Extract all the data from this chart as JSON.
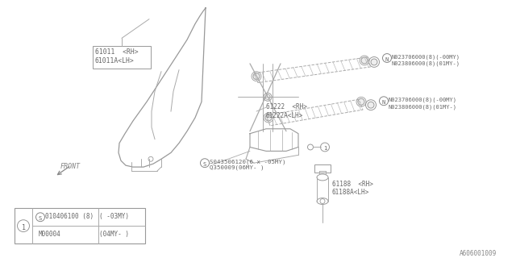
{
  "bg_color": "#ffffff",
  "line_color": "#aaaaaa",
  "text_color": "#666666",
  "diagram_id": "A606001009",
  "glass_label": "61011  <RH>\n61011A<LH>",
  "regulator_label": "61222  <RH>\n61222A<LH>",
  "screw_label": "S043506120(6 x -05MY)\nQ350009(06MY- )",
  "bolt1a": "N023706000(8)(-00MY)",
  "bolt1b": "N023806000(8)(01MY-)",
  "bolt2a": "N023706000(8)(-00MY)",
  "bolt2b": "N023806000(8)(01MY-)",
  "motor_label": "61188  <RH>\n61188A<LH>",
  "front_label": "FRONT",
  "legend_s": "S",
  "legend_part1": "010406100 (8)",
  "legend_cond1": "( -03MY)",
  "legend_part2": "M00004",
  "legend_cond2": "(04MY- )",
  "glass_pts_x": [
    255,
    250,
    245,
    235,
    220,
    205,
    185,
    168,
    158,
    152,
    148,
    150,
    155,
    162,
    175,
    185,
    195,
    210,
    220,
    230,
    240,
    250,
    255
  ],
  "glass_pts_y": [
    10,
    14,
    20,
    30,
    48,
    70,
    98,
    125,
    148,
    165,
    178,
    192,
    200,
    208,
    210,
    205,
    200,
    190,
    182,
    170,
    155,
    135,
    10
  ]
}
